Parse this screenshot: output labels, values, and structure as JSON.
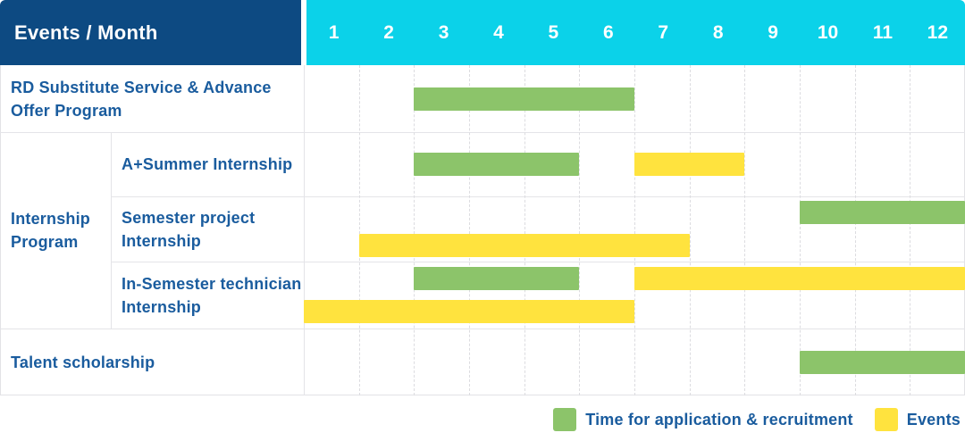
{
  "header": {
    "corner_label": "Events / Month",
    "months": [
      "1",
      "2",
      "3",
      "4",
      "5",
      "6",
      "7",
      "8",
      "9",
      "10",
      "11",
      "12"
    ]
  },
  "colors": {
    "corner_header_bg": "#0D4A82",
    "month_header_bg": "#0BD2E9",
    "label_text": "#1A5C9E",
    "green": "#8CC46A",
    "yellow": "#FFE33E",
    "grid": "#E4E4E8"
  },
  "chart_data": {
    "type": "gantt",
    "title": "Events / Month",
    "x_axis": {
      "label": "Month",
      "ticks": [
        1,
        2,
        3,
        4,
        5,
        6,
        7,
        8,
        9,
        10,
        11,
        12
      ]
    },
    "rows": [
      {
        "label": "RD Substitute Service & Advance Offer Program",
        "group": null,
        "tracks": [
          [
            {
              "series": "Time for application & recruitment",
              "color": "green",
              "start_month": 3,
              "end_month": 6
            }
          ]
        ]
      },
      {
        "label": "A+Summer Internship",
        "group": "Internship Program",
        "tracks": [
          [
            {
              "series": "Time for application & recruitment",
              "color": "green",
              "start_month": 3,
              "end_month": 5
            },
            {
              "series": "Events",
              "color": "yellow",
              "start_month": 7,
              "end_month": 8
            }
          ]
        ]
      },
      {
        "label": "Semester project Internship",
        "group": "Internship Program",
        "tracks": [
          [
            {
              "series": "Time for application & recruitment",
              "color": "green",
              "start_month": 10,
              "end_month": 12
            }
          ],
          [
            {
              "series": "Events",
              "color": "yellow",
              "start_month": 2,
              "end_month": 7
            }
          ]
        ]
      },
      {
        "label": "In-Semester technician Internship",
        "group": "Internship Program",
        "tracks": [
          [
            {
              "series": "Time for application & recruitment",
              "color": "green",
              "start_month": 3,
              "end_month": 5
            },
            {
              "series": "Events",
              "color": "yellow",
              "start_month": 7,
              "end_month": 12
            }
          ],
          [
            {
              "series": "Events",
              "color": "yellow",
              "start_month": 1,
              "end_month": 6
            }
          ]
        ]
      },
      {
        "label": "Talent scholarship",
        "group": null,
        "tracks": [
          [
            {
              "series": "Time for application & recruitment",
              "color": "green",
              "start_month": 10,
              "end_month": 12
            }
          ]
        ]
      }
    ],
    "legend": [
      {
        "color": "green",
        "label": "Time for application & recruitment"
      },
      {
        "color": "yellow",
        "label": "Events"
      }
    ],
    "legend_position": "bottom-right",
    "grid": true
  }
}
